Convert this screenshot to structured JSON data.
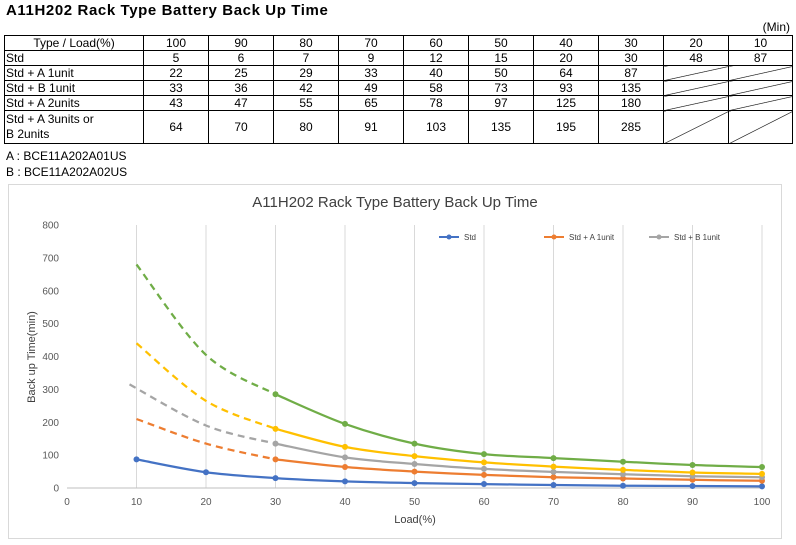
{
  "title": "A11H202 Rack Type Battery Back Up Time",
  "unit_note": "(Min)",
  "table": {
    "header_label": "Type / Load(%)",
    "loads": [
      "100",
      "90",
      "80",
      "70",
      "60",
      "50",
      "40",
      "30",
      "20",
      "10"
    ],
    "rows": [
      {
        "label": "Std",
        "values": [
          "5",
          "6",
          "7",
          "9",
          "12",
          "15",
          "20",
          "30",
          "48",
          "87"
        ]
      },
      {
        "label": "Std + A 1unit",
        "values": [
          "22",
          "25",
          "29",
          "33",
          "40",
          "50",
          "64",
          "87",
          "",
          ""
        ]
      },
      {
        "label": "Std + B 1unit",
        "values": [
          "33",
          "36",
          "42",
          "49",
          "58",
          "73",
          "93",
          "135",
          "",
          ""
        ]
      },
      {
        "label": "Std + A 2units",
        "values": [
          "43",
          "47",
          "55",
          "65",
          "78",
          "97",
          "125",
          "180",
          "",
          ""
        ]
      },
      {
        "label_line1": "Std + A 3units or",
        "label_line2": "B 2units",
        "values": [
          "64",
          "70",
          "80",
          "91",
          "103",
          "135",
          "195",
          "285",
          "",
          ""
        ]
      }
    ]
  },
  "notes": {
    "a": "A : BCE11A202A01US",
    "b": "B : BCE11A202A02US"
  },
  "chart_data": {
    "type": "line",
    "title": "A11H202 Rack Type Battery Back Up Time",
    "xlabel": "Load(%)",
    "ylabel": "Back up Time(min)",
    "xlim": [
      0,
      100
    ],
    "ylim": [
      0,
      800
    ],
    "xticks": [
      0,
      10,
      20,
      30,
      40,
      50,
      60,
      70,
      80,
      90,
      100
    ],
    "yticks": [
      0,
      100,
      200,
      300,
      400,
      500,
      600,
      700,
      800
    ],
    "grid": "vertical",
    "legend_position": "top-right",
    "series": [
      {
        "name": "Std",
        "color": "#4472c4",
        "x": [
          10,
          20,
          30,
          40,
          50,
          60,
          70,
          80,
          90,
          100
        ],
        "y": [
          87,
          48,
          30,
          20,
          15,
          12,
          9,
          7,
          6,
          5
        ],
        "dashed": []
      },
      {
        "name": "Std + A 1unit",
        "color": "#ed7d31",
        "x": [
          30,
          40,
          50,
          60,
          70,
          80,
          90,
          100
        ],
        "y": [
          87,
          64,
          50,
          40,
          33,
          29,
          25,
          22
        ],
        "dashed": [
          [
            10,
            210
          ],
          [
            20,
            135
          ],
          [
            30,
            87
          ]
        ]
      },
      {
        "name": "Std + B 1unit",
        "color": "#a5a5a5",
        "x": [
          30,
          40,
          50,
          60,
          70,
          80,
          90,
          100
        ],
        "y": [
          135,
          93,
          73,
          58,
          49,
          42,
          36,
          33
        ],
        "dashed": [
          [
            9,
            315
          ],
          [
            20,
            190
          ],
          [
            30,
            135
          ]
        ]
      },
      {
        "name": "",
        "color": "#ffc000",
        "x": [
          30,
          40,
          50,
          60,
          70,
          80,
          90,
          100
        ],
        "y": [
          180,
          125,
          97,
          78,
          65,
          55,
          47,
          43
        ],
        "dashed": [
          [
            10,
            440
          ],
          [
            20,
            265
          ],
          [
            30,
            180
          ]
        ]
      },
      {
        "name": "",
        "color": "#70ad47",
        "x": [
          30,
          40,
          50,
          60,
          70,
          80,
          90,
          100
        ],
        "y": [
          285,
          195,
          135,
          103,
          91,
          80,
          70,
          64
        ],
        "dashed": [
          [
            10,
            680
          ],
          [
            20,
            405
          ],
          [
            30,
            285
          ]
        ]
      }
    ]
  }
}
